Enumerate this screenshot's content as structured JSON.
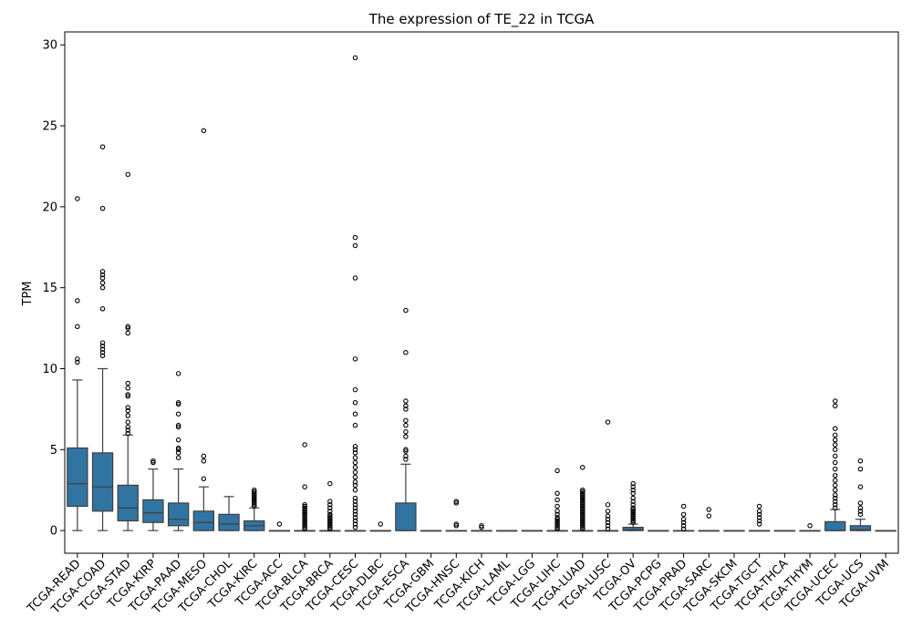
{
  "chart_data": {
    "type": "box",
    "title": "The expression of TE_22 in TCGA",
    "xlabel": "",
    "ylabel": "TPM",
    "ylim": [
      -1.4,
      30.8
    ],
    "yticks": [
      0,
      5,
      10,
      15,
      20,
      25,
      30
    ],
    "box_color": "#3274a1",
    "grid": false,
    "categories": [
      "TCGA-READ",
      "TCGA-COAD",
      "TCGA-STAD",
      "TCGA-KIRP",
      "TCGA-PAAD",
      "TCGA-MESO",
      "TCGA-CHOL",
      "TCGA-KIRC",
      "TCGA-ACC",
      "TCGA-BLCA",
      "TCGA-BRCA",
      "TCGA-CESC",
      "TCGA-DLBC",
      "TCGA-ESCA",
      "TCGA-GBM",
      "TCGA-HNSC",
      "TCGA-KICH",
      "TCGA-LAML",
      "TCGA-LGG",
      "TCGA-LIHC",
      "TCGA-LUAD",
      "TCGA-LUSC",
      "TCGA-OV",
      "TCGA-PCPG",
      "TCGA-PRAD",
      "TCGA-SARC",
      "TCGA-SKCM",
      "TCGA-TGCT",
      "TCGA-THCA",
      "TCGA-THYM",
      "TCGA-UCEC",
      "TCGA-UCS",
      "TCGA-UVM"
    ],
    "boxes": [
      {
        "min": 0,
        "q1": 1.5,
        "median": 2.9,
        "q3": 5.1,
        "max": 9.3,
        "outliers": [
          10.4,
          10.6,
          12.6,
          14.2,
          20.5
        ]
      },
      {
        "min": 0,
        "q1": 1.2,
        "median": 2.7,
        "q3": 4.8,
        "max": 10.0,
        "outliers": [
          10.8,
          11.0,
          11.2,
          11.4,
          11.6,
          13.7,
          15.0,
          15.3,
          15.6,
          15.8,
          16.0,
          19.9,
          23.7
        ]
      },
      {
        "min": 0,
        "q1": 0.6,
        "median": 1.4,
        "q3": 2.8,
        "max": 5.9,
        "outliers": [
          6.0,
          6.2,
          6.4,
          6.7,
          7.1,
          7.4,
          7.6,
          8.3,
          8.4,
          8.8,
          9.1,
          12.2,
          12.5,
          12.6,
          22.0
        ]
      },
      {
        "min": 0,
        "q1": 0.5,
        "median": 1.1,
        "q3": 1.9,
        "max": 3.8,
        "outliers": [
          4.2,
          4.3
        ]
      },
      {
        "min": 0,
        "q1": 0.3,
        "median": 0.7,
        "q3": 1.7,
        "max": 3.8,
        "outliers": [
          4.5,
          4.8,
          5.0,
          5.1,
          5.6,
          6.4,
          6.5,
          7.2,
          7.8,
          7.9,
          9.7
        ]
      },
      {
        "min": 0,
        "q1": 0.0,
        "median": 0.5,
        "q3": 1.2,
        "max": 2.7,
        "outliers": [
          3.2,
          4.3,
          4.6,
          24.7
        ]
      },
      {
        "min": 0,
        "q1": 0.0,
        "median": 0.4,
        "q3": 1.0,
        "max": 2.1,
        "outliers": []
      },
      {
        "min": 0,
        "q1": 0.0,
        "median": 0.3,
        "q3": 0.6,
        "max": 1.4,
        "outliers": [
          1.5,
          1.6,
          1.7,
          1.8,
          1.9,
          2.0,
          2.1,
          2.2,
          2.3,
          2.4,
          2.5
        ]
      },
      {
        "min": 0,
        "q1": 0,
        "median": 0,
        "q3": 0,
        "max": 0,
        "outliers": [
          0.4
        ]
      },
      {
        "min": 0,
        "q1": 0,
        "median": 0,
        "q3": 0,
        "max": 0,
        "outliers": [
          0.1,
          0.2,
          0.3,
          0.4,
          0.5,
          0.6,
          0.7,
          0.8,
          0.9,
          1.0,
          1.1,
          1.2,
          1.3,
          1.4,
          1.5,
          1.6,
          2.7,
          5.3
        ]
      },
      {
        "min": 0,
        "q1": 0,
        "median": 0,
        "q3": 0,
        "max": 0,
        "outliers": [
          0.1,
          0.2,
          0.3,
          0.4,
          0.5,
          0.6,
          0.7,
          0.8,
          0.9,
          1.0,
          1.2,
          1.4,
          1.6,
          1.8,
          2.9
        ]
      },
      {
        "min": 0,
        "q1": 0,
        "median": 0,
        "q3": 0,
        "max": 0,
        "outliers": [
          0.2,
          0.4,
          0.6,
          0.8,
          1.0,
          1.2,
          1.4,
          1.6,
          1.8,
          2.0,
          2.5,
          2.8,
          3.0,
          3.3,
          3.6,
          3.9,
          4.2,
          4.5,
          4.8,
          5.0,
          5.2,
          6.5,
          7.2,
          7.9,
          8.7,
          10.6,
          15.6,
          17.6,
          18.1,
          29.2
        ]
      },
      {
        "min": 0,
        "q1": 0,
        "median": 0,
        "q3": 0,
        "max": 0,
        "outliers": [
          0.4
        ]
      },
      {
        "min": 0,
        "q1": 0,
        "median": 0,
        "q3": 1.7,
        "max": 4.1,
        "outliers": [
          4.4,
          4.6,
          4.9,
          5.0,
          5.8,
          6.1,
          6.5,
          6.8,
          7.5,
          7.7,
          8.0,
          11.0,
          13.6
        ]
      },
      {
        "min": 0,
        "q1": 0,
        "median": 0,
        "q3": 0,
        "max": 0,
        "outliers": []
      },
      {
        "min": 0,
        "q1": 0,
        "median": 0,
        "q3": 0,
        "max": 0,
        "outliers": [
          0.3,
          0.4,
          1.7,
          1.8
        ]
      },
      {
        "min": 0,
        "q1": 0,
        "median": 0,
        "q3": 0,
        "max": 0,
        "outliers": [
          0.2,
          0.3
        ]
      },
      {
        "min": 0,
        "q1": 0,
        "median": 0,
        "q3": 0,
        "max": 0,
        "outliers": []
      },
      {
        "min": 0,
        "q1": 0,
        "median": 0,
        "q3": 0,
        "max": 0,
        "outliers": []
      },
      {
        "min": 0,
        "q1": 0,
        "median": 0,
        "q3": 0,
        "max": 0,
        "outliers": [
          0.1,
          0.2,
          0.3,
          0.4,
          0.5,
          0.6,
          0.7,
          0.8,
          1.0,
          1.2,
          1.5,
          1.9,
          2.3,
          3.7
        ]
      },
      {
        "min": 0,
        "q1": 0,
        "median": 0,
        "q3": 0,
        "max": 0,
        "outliers": [
          0.1,
          0.2,
          0.3,
          0.4,
          0.5,
          0.6,
          0.7,
          0.8,
          0.9,
          1.0,
          1.1,
          1.2,
          1.3,
          1.4,
          1.5,
          1.6,
          1.7,
          1.8,
          1.9,
          2.0,
          2.1,
          2.2,
          2.3,
          2.4,
          2.5,
          3.9
        ]
      },
      {
        "min": 0,
        "q1": 0,
        "median": 0,
        "q3": 0,
        "max": 0,
        "outliers": [
          0.1,
          0.3,
          0.5,
          0.7,
          0.9,
          1.2,
          1.6,
          6.7
        ]
      },
      {
        "min": 0,
        "q1": 0,
        "median": 0.05,
        "q3": 0.2,
        "max": 0.4,
        "outliers": [
          0.5,
          0.6,
          0.7,
          0.8,
          0.9,
          1.0,
          1.1,
          1.2,
          1.3,
          1.4,
          1.6,
          1.8,
          2.0,
          2.3,
          2.5,
          2.7,
          2.9
        ]
      },
      {
        "min": 0,
        "q1": 0,
        "median": 0,
        "q3": 0,
        "max": 0,
        "outliers": []
      },
      {
        "min": 0,
        "q1": 0,
        "median": 0,
        "q3": 0,
        "max": 0,
        "outliers": [
          0.1,
          0.3,
          0.5,
          0.7,
          1.0,
          1.5
        ]
      },
      {
        "min": 0,
        "q1": 0,
        "median": 0,
        "q3": 0,
        "max": 0,
        "outliers": [
          0.9,
          1.3
        ]
      },
      {
        "min": 0,
        "q1": 0,
        "median": 0,
        "q3": 0,
        "max": 0,
        "outliers": []
      },
      {
        "min": 0,
        "q1": 0,
        "median": 0,
        "q3": 0,
        "max": 0,
        "outliers": [
          0.4,
          0.6,
          0.8,
          1.0,
          1.2,
          1.5
        ]
      },
      {
        "min": 0,
        "q1": 0,
        "median": 0,
        "q3": 0,
        "max": 0,
        "outliers": []
      },
      {
        "min": 0,
        "q1": 0,
        "median": 0,
        "q3": 0,
        "max": 0,
        "outliers": [
          0.3
        ]
      },
      {
        "min": 0,
        "q1": 0,
        "median": 0,
        "q3": 0.55,
        "max": 1.3,
        "outliers": [
          1.4,
          1.6,
          1.8,
          2.0,
          2.2,
          2.5,
          2.8,
          3.1,
          3.4,
          3.8,
          4.2,
          4.6,
          5.0,
          5.3,
          5.6,
          5.9,
          6.3,
          7.7,
          8.0
        ]
      },
      {
        "min": 0,
        "q1": 0,
        "median": 0.05,
        "q3": 0.3,
        "max": 0.7,
        "outliers": [
          1.0,
          1.2,
          1.4,
          1.7,
          2.7,
          3.8,
          4.3
        ]
      },
      {
        "min": 0,
        "q1": 0,
        "median": 0,
        "q3": 0,
        "max": 0,
        "outliers": []
      }
    ]
  }
}
